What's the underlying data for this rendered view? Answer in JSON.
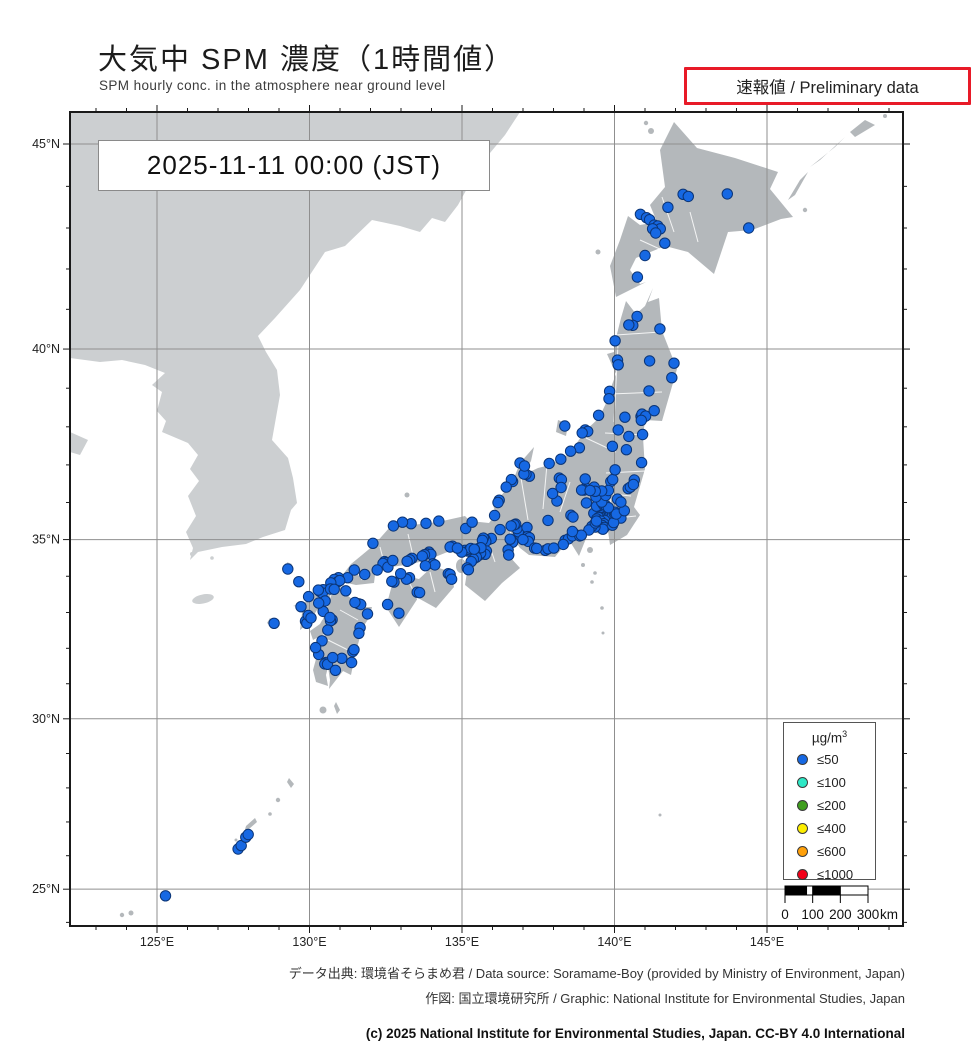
{
  "header": {
    "title_jp": "大気中 SPM 濃度（1時間値）",
    "subtitle_en": "SPM hourly conc. in the atmosphere near ground level",
    "preliminary_label": "速報値 / Preliminary data"
  },
  "timestamp": "2025-11-11  00:00 (JST)",
  "map": {
    "lat_axis": {
      "min": 23.9,
      "max": 45.7,
      "major_ticks": [
        {
          "deg": 45,
          "label": "45°N"
        },
        {
          "deg": 40,
          "label": "40°N"
        },
        {
          "deg": 35,
          "label": "35°N"
        },
        {
          "deg": 30,
          "label": "30°N"
        },
        {
          "deg": 25,
          "label": "25°N"
        }
      ]
    },
    "lon_axis": {
      "min": 122.2,
      "max": 149.5,
      "major_ticks": [
        {
          "deg": 125,
          "label": "125°E"
        },
        {
          "deg": 130,
          "label": "130°E"
        },
        {
          "deg": 135,
          "label": "135°E"
        },
        {
          "deg": 140,
          "label": "140°E"
        },
        {
          "deg": 145,
          "label": "145°E"
        }
      ]
    },
    "grid": true,
    "colors": {
      "sea": "#ffffff",
      "continent": "#cccfd1",
      "japan": "#b4b8bb",
      "grid": "#8f8f8f",
      "frame": "#1a1a1a",
      "dot_fill": "#1668e3",
      "dot_stroke": "#0b3577"
    }
  },
  "legend": {
    "unit_base": "µg/m",
    "unit_sup": "3",
    "items": [
      {
        "label": "≤50",
        "color": "#1668e3"
      },
      {
        "label": "≤100",
        "color": "#2ee8c6"
      },
      {
        "label": "≤200",
        "color": "#3f9e1e"
      },
      {
        "label": "≤400",
        "color": "#fdee00"
      },
      {
        "label": "≤600",
        "color": "#ffa00a"
      },
      {
        "label": "≤1000",
        "color": "#f30019"
      }
    ]
  },
  "scalebar": {
    "tick_labels": [
      "0",
      "100",
      "200",
      "300"
    ],
    "unit": "km"
  },
  "footer": {
    "line1": "データ出典: 環境省そらまめ君 / Data source: Soramame-Boy (provided by Ministry of Environment, Japan)",
    "line2": "作図: 国立環境研究所 / Graphic: National Institute for Environmental Studies, Japan",
    "copyright": "(c) 2025 National Institute for Environmental Studies, Japan. CC-BY 4.0 International"
  },
  "stations": {
    "value_class": "≤50",
    "points": [
      [
        142.25,
        43.81
      ],
      [
        142.42,
        43.76
      ],
      [
        143.7,
        43.82
      ],
      [
        144.4,
        43.0
      ],
      [
        141.75,
        43.5
      ],
      [
        140.85,
        43.33
      ],
      [
        141.05,
        43.25
      ],
      [
        141.15,
        43.2
      ],
      [
        141.3,
        43.07
      ],
      [
        141.42,
        43.05
      ],
      [
        141.5,
        42.98
      ],
      [
        141.25,
        42.98
      ],
      [
        141.35,
        42.88
      ],
      [
        141.65,
        42.63
      ],
      [
        141.0,
        42.33
      ],
      [
        140.75,
        41.8
      ],
      [
        140.74,
        40.82
      ],
      [
        140.6,
        40.6
      ],
      [
        141.49,
        40.51
      ],
      [
        140.47,
        40.61
      ],
      [
        141.15,
        39.7
      ],
      [
        141.95,
        39.64
      ],
      [
        141.88,
        39.27
      ],
      [
        141.13,
        38.93
      ],
      [
        140.1,
        39.72
      ],
      [
        140.12,
        39.6
      ],
      [
        140.02,
        40.21
      ],
      [
        140.34,
        38.25
      ],
      [
        140.12,
        37.92
      ],
      [
        139.84,
        38.92
      ],
      [
        139.82,
        38.73
      ],
      [
        140.87,
        38.27
      ],
      [
        140.95,
        38.25
      ],
      [
        140.9,
        38.33
      ],
      [
        141.02,
        38.28
      ],
      [
        141.3,
        38.42
      ],
      [
        140.88,
        38.17
      ],
      [
        140.47,
        37.75
      ],
      [
        140.39,
        37.4
      ],
      [
        139.93,
        37.49
      ],
      [
        140.89,
        37.06
      ],
      [
        140.92,
        37.8
      ],
      [
        139.04,
        37.92
      ],
      [
        139.12,
        37.88
      ],
      [
        138.94,
        37.84
      ],
      [
        138.85,
        37.45
      ],
      [
        138.56,
        37.36
      ],
      [
        138.24,
        37.15
      ],
      [
        138.37,
        38.02
      ],
      [
        137.86,
        37.04
      ],
      [
        139.48,
        38.3
      ],
      [
        139.69,
        35.69
      ],
      [
        139.75,
        35.7
      ],
      [
        139.8,
        35.71
      ],
      [
        139.64,
        35.64
      ],
      [
        139.7,
        35.62
      ],
      [
        139.77,
        35.63
      ],
      [
        139.85,
        35.66
      ],
      [
        139.9,
        35.68
      ],
      [
        139.6,
        35.7
      ],
      [
        139.55,
        35.66
      ],
      [
        139.5,
        35.7
      ],
      [
        139.45,
        35.67
      ],
      [
        139.38,
        35.66
      ],
      [
        139.32,
        35.71
      ],
      [
        139.48,
        35.6
      ],
      [
        139.42,
        35.56
      ],
      [
        139.62,
        35.47
      ],
      [
        139.68,
        35.52
      ],
      [
        139.55,
        35.5
      ],
      [
        139.65,
        35.43
      ],
      [
        139.6,
        35.38
      ],
      [
        139.55,
        35.33
      ],
      [
        139.67,
        35.33
      ],
      [
        139.62,
        35.28
      ],
      [
        139.36,
        35.34
      ],
      [
        139.26,
        35.36
      ],
      [
        139.16,
        35.26
      ],
      [
        139.37,
        35.45
      ],
      [
        139.41,
        35.5
      ],
      [
        140.1,
        35.61
      ],
      [
        140.13,
        35.66
      ],
      [
        140.21,
        35.58
      ],
      [
        139.93,
        35.39
      ],
      [
        139.97,
        35.46
      ],
      [
        139.99,
        35.71
      ],
      [
        140.02,
        35.74
      ],
      [
        140.06,
        35.69
      ],
      [
        140.32,
        35.78
      ],
      [
        139.65,
        35.86
      ],
      [
        139.6,
        35.89
      ],
      [
        139.55,
        35.87
      ],
      [
        139.49,
        35.91
      ],
      [
        139.41,
        35.9
      ],
      [
        139.63,
        35.95
      ],
      [
        139.72,
        35.91
      ],
      [
        139.8,
        35.86
      ],
      [
        139.58,
        36.01
      ],
      [
        139.39,
        36.15
      ],
      [
        139.08,
        35.99
      ],
      [
        140.45,
        36.37
      ],
      [
        140.52,
        36.41
      ],
      [
        140.65,
        36.6
      ],
      [
        140.62,
        36.48
      ],
      [
        140.1,
        36.09
      ],
      [
        140.21,
        36.01
      ],
      [
        139.71,
        36.19
      ],
      [
        139.88,
        36.56
      ],
      [
        139.94,
        36.61
      ],
      [
        139.8,
        36.32
      ],
      [
        139.58,
        36.31
      ],
      [
        140.02,
        36.87
      ],
      [
        139.06,
        36.39
      ],
      [
        139.0,
        36.33
      ],
      [
        138.92,
        36.33
      ],
      [
        139.33,
        36.41
      ],
      [
        139.37,
        36.3
      ],
      [
        139.2,
        36.32
      ],
      [
        139.04,
        36.63
      ],
      [
        138.57,
        35.66
      ],
      [
        138.64,
        35.61
      ],
      [
        138.11,
        36.04
      ],
      [
        137.97,
        36.24
      ],
      [
        138.19,
        36.65
      ],
      [
        138.26,
        36.61
      ],
      [
        138.25,
        36.4
      ],
      [
        137.82,
        35.52
      ],
      [
        138.38,
        34.98
      ],
      [
        138.49,
        35.02
      ],
      [
        138.68,
        35.16
      ],
      [
        138.62,
        35.1
      ],
      [
        138.86,
        35.1
      ],
      [
        138.91,
        35.12
      ],
      [
        138.62,
        35.22
      ],
      [
        137.73,
        34.71
      ],
      [
        137.82,
        34.75
      ],
      [
        138.01,
        34.77
      ],
      [
        138.32,
        34.87
      ],
      [
        137.21,
        36.7
      ],
      [
        137.1,
        36.75
      ],
      [
        137.03,
        36.76
      ],
      [
        136.66,
        36.56
      ],
      [
        136.62,
        36.61
      ],
      [
        136.45,
        36.41
      ],
      [
        136.22,
        36.06
      ],
      [
        136.18,
        36.0
      ],
      [
        136.07,
        35.65
      ],
      [
        136.9,
        37.05
      ],
      [
        137.05,
        36.97
      ],
      [
        136.9,
        35.18
      ],
      [
        136.95,
        35.15
      ],
      [
        136.88,
        35.1
      ],
      [
        136.93,
        35.08
      ],
      [
        137.0,
        35.12
      ],
      [
        136.85,
        35.21
      ],
      [
        136.8,
        35.3
      ],
      [
        136.76,
        35.42
      ],
      [
        136.71,
        35.4
      ],
      [
        136.61,
        35.37
      ],
      [
        137.13,
        35.33
      ],
      [
        137.15,
        35.08
      ],
      [
        137.21,
        35.05
      ],
      [
        137.17,
        34.95
      ],
      [
        137.38,
        34.77
      ],
      [
        137.45,
        34.76
      ],
      [
        137.0,
        35.0
      ],
      [
        136.62,
        34.97
      ],
      [
        136.66,
        34.93
      ],
      [
        136.58,
        35.01
      ],
      [
        136.51,
        34.72
      ],
      [
        136.53,
        34.58
      ],
      [
        135.87,
        35.0
      ],
      [
        136.25,
        35.27
      ],
      [
        135.96,
        35.03
      ],
      [
        135.75,
        35.01
      ],
      [
        135.78,
        34.95
      ],
      [
        135.7,
        35.04
      ],
      [
        135.67,
        34.98
      ],
      [
        135.12,
        35.3
      ],
      [
        135.33,
        35.47
      ],
      [
        135.8,
        34.69
      ],
      [
        135.76,
        34.6
      ],
      [
        135.5,
        34.69
      ],
      [
        135.45,
        34.66
      ],
      [
        135.55,
        34.65
      ],
      [
        135.6,
        34.7
      ],
      [
        135.52,
        34.61
      ],
      [
        135.42,
        34.59
      ],
      [
        135.48,
        34.56
      ],
      [
        135.57,
        34.58
      ],
      [
        135.61,
        34.63
      ],
      [
        135.38,
        34.58
      ],
      [
        135.55,
        34.76
      ],
      [
        135.62,
        34.78
      ],
      [
        135.41,
        34.73
      ],
      [
        135.35,
        34.66
      ],
      [
        135.47,
        34.52
      ],
      [
        135.37,
        34.47
      ],
      [
        135.3,
        34.4
      ],
      [
        135.18,
        34.69
      ],
      [
        135.1,
        34.71
      ],
      [
        135.25,
        34.73
      ],
      [
        135.29,
        34.76
      ],
      [
        135.4,
        34.74
      ],
      [
        134.99,
        34.66
      ],
      [
        134.69,
        34.82
      ],
      [
        134.61,
        34.8
      ],
      [
        134.85,
        34.77
      ],
      [
        135.17,
        34.23
      ],
      [
        135.21,
        34.18
      ],
      [
        134.24,
        35.5
      ],
      [
        133.82,
        35.44
      ],
      [
        133.33,
        35.43
      ],
      [
        133.05,
        35.47
      ],
      [
        132.75,
        35.37
      ],
      [
        132.08,
        34.9
      ],
      [
        133.92,
        34.66
      ],
      [
        133.86,
        34.61
      ],
      [
        133.98,
        34.6
      ],
      [
        133.77,
        34.59
      ],
      [
        133.7,
        34.55
      ],
      [
        133.36,
        34.49
      ],
      [
        133.29,
        34.45
      ],
      [
        133.2,
        34.41
      ],
      [
        132.46,
        34.4
      ],
      [
        132.51,
        34.37
      ],
      [
        132.41,
        34.35
      ],
      [
        132.57,
        34.25
      ],
      [
        132.73,
        34.43
      ],
      [
        132.22,
        34.17
      ],
      [
        131.81,
        34.05
      ],
      [
        131.47,
        34.17
      ],
      [
        131.25,
        33.96
      ],
      [
        130.95,
        33.96
      ],
      [
        134.05,
        34.34
      ],
      [
        134.11,
        34.31
      ],
      [
        133.8,
        34.29
      ],
      [
        134.55,
        34.07
      ],
      [
        134.61,
        34.05
      ],
      [
        134.66,
        33.92
      ],
      [
        133.28,
        33.96
      ],
      [
        133.18,
        33.92
      ],
      [
        132.99,
        34.07
      ],
      [
        132.77,
        33.84
      ],
      [
        132.7,
        33.86
      ],
      [
        132.56,
        33.22
      ],
      [
        133.53,
        33.56
      ],
      [
        133.61,
        33.55
      ],
      [
        132.93,
        32.98
      ],
      [
        130.87,
        33.88
      ],
      [
        130.81,
        33.91
      ],
      [
        130.93,
        33.85
      ],
      [
        130.99,
        33.88
      ],
      [
        130.7,
        33.82
      ],
      [
        130.4,
        33.59
      ],
      [
        130.34,
        33.58
      ],
      [
        130.45,
        33.63
      ],
      [
        130.42,
        33.54
      ],
      [
        130.29,
        33.62
      ],
      [
        130.51,
        33.32
      ],
      [
        130.45,
        33.03
      ],
      [
        130.69,
        33.65
      ],
      [
        130.81,
        33.64
      ],
      [
        130.3,
        33.26
      ],
      [
        129.97,
        33.44
      ],
      [
        129.87,
        32.76
      ],
      [
        129.91,
        32.7
      ],
      [
        129.72,
        33.16
      ],
      [
        129.96,
        32.92
      ],
      [
        130.05,
        32.85
      ],
      [
        130.74,
        32.8
      ],
      [
        130.69,
        32.77
      ],
      [
        130.67,
        32.86
      ],
      [
        130.6,
        32.51
      ],
      [
        130.41,
        32.21
      ],
      [
        131.61,
        33.24
      ],
      [
        131.68,
        33.22
      ],
      [
        131.49,
        33.28
      ],
      [
        131.19,
        33.6
      ],
      [
        131.9,
        32.96
      ],
      [
        131.66,
        32.58
      ],
      [
        131.62,
        32.42
      ],
      [
        131.42,
        31.91
      ],
      [
        131.46,
        31.96
      ],
      [
        131.06,
        31.72
      ],
      [
        131.38,
        31.6
      ],
      [
        130.55,
        31.6
      ],
      [
        130.5,
        31.56
      ],
      [
        130.59,
        31.55
      ],
      [
        130.85,
        31.38
      ],
      [
        130.3,
        31.83
      ],
      [
        130.2,
        32.02
      ],
      [
        130.76,
        31.74
      ],
      [
        129.29,
        34.2
      ],
      [
        129.65,
        33.85
      ],
      [
        128.84,
        32.7
      ],
      [
        127.66,
        26.2
      ],
      [
        127.76,
        26.3
      ],
      [
        127.91,
        26.55
      ],
      [
        127.99,
        26.63
      ],
      [
        125.28,
        24.8
      ]
    ]
  }
}
